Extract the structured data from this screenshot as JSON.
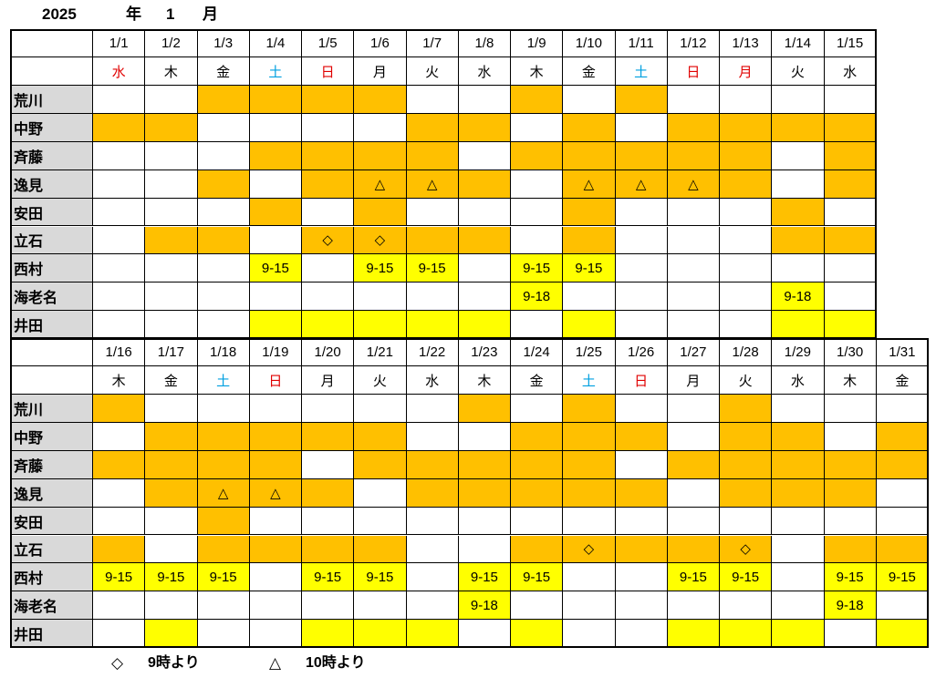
{
  "title": {
    "year": "2025",
    "year_unit": "年",
    "month": "1",
    "month_unit": "月"
  },
  "colors": {
    "o": "#ffc000",
    "y": "#ffff00",
    "w": "#ffffff"
  },
  "tables": [
    {
      "dates": [
        "1/1",
        "1/2",
        "1/3",
        "1/4",
        "1/5",
        "1/6",
        "1/7",
        "1/8",
        "1/9",
        "1/10",
        "1/11",
        "1/12",
        "1/13",
        "1/14",
        "1/15"
      ],
      "weekdays": [
        {
          "text": "水",
          "color": "#e00000"
        },
        {
          "text": "木",
          "color": "#000"
        },
        {
          "text": "金",
          "color": "#000"
        },
        {
          "text": "土",
          "color": "#00a0e0"
        },
        {
          "text": "日",
          "color": "#e00000"
        },
        {
          "text": "月",
          "color": "#000"
        },
        {
          "text": "火",
          "color": "#000"
        },
        {
          "text": "水",
          "color": "#000"
        },
        {
          "text": "木",
          "color": "#000"
        },
        {
          "text": "金",
          "color": "#000"
        },
        {
          "text": "土",
          "color": "#00a0e0"
        },
        {
          "text": "日",
          "color": "#e00000"
        },
        {
          "text": "月",
          "color": "#e00000"
        },
        {
          "text": "火",
          "color": "#000"
        },
        {
          "text": "水",
          "color": "#000"
        }
      ],
      "rows": [
        {
          "name": "荒川",
          "fill": [
            "w",
            "w",
            "o",
            "o",
            "o",
            "o",
            "w",
            "w",
            "o",
            "w",
            "o",
            "w",
            "w",
            "w",
            "w"
          ],
          "cells": [
            null,
            null,
            null,
            null,
            null,
            null,
            null,
            null,
            null,
            null,
            null,
            null,
            null,
            null,
            null
          ]
        },
        {
          "name": "中野",
          "fill": [
            "o",
            "o",
            "w",
            "w",
            "w",
            "w",
            "o",
            "o",
            "w",
            "o",
            "w",
            "o",
            "o",
            "o",
            "o"
          ],
          "cells": [
            null,
            null,
            null,
            null,
            null,
            null,
            null,
            null,
            null,
            null,
            null,
            null,
            null,
            null,
            null
          ]
        },
        {
          "name": "斉藤",
          "fill": [
            "w",
            "w",
            "w",
            "o",
            "o",
            "o",
            "o",
            "w",
            "o",
            "o",
            "o",
            "o",
            "o",
            "w",
            "o"
          ],
          "cells": [
            null,
            null,
            null,
            null,
            null,
            null,
            null,
            null,
            null,
            null,
            null,
            null,
            null,
            null,
            null
          ]
        },
        {
          "name": "逸見",
          "fill": [
            "w",
            "w",
            "o",
            "w",
            "o",
            "o",
            "o",
            "o",
            "w",
            "o",
            "o",
            "o",
            "o",
            "w",
            "o"
          ],
          "cells": [
            null,
            null,
            null,
            null,
            null,
            "△",
            "△",
            null,
            null,
            "△",
            "△",
            "△",
            null,
            null,
            null
          ]
        },
        {
          "name": "安田",
          "fill": [
            "w",
            "w",
            "w",
            "o",
            "w",
            "o",
            "w",
            "w",
            "w",
            "o",
            "w",
            "w",
            "w",
            "o",
            "w"
          ],
          "cells": [
            null,
            null,
            null,
            null,
            null,
            null,
            null,
            null,
            null,
            null,
            null,
            null,
            null,
            null,
            null
          ]
        },
        {
          "name": "立石",
          "fill": [
            "w",
            "o",
            "o",
            "w",
            "o",
            "o",
            "o",
            "o",
            "w",
            "o",
            "w",
            "w",
            "w",
            "o",
            "o"
          ],
          "cells": [
            null,
            null,
            null,
            null,
            "◇",
            "◇",
            null,
            null,
            null,
            null,
            null,
            null,
            null,
            null,
            null
          ]
        },
        {
          "name": "西村",
          "fill": [
            "w",
            "w",
            "w",
            "y",
            "w",
            "y",
            "y",
            "w",
            "y",
            "y",
            "w",
            "w",
            "w",
            "w",
            "w"
          ],
          "cells": [
            null,
            null,
            null,
            "9-15",
            null,
            "9-15",
            "9-15",
            null,
            "9-15",
            "9-15",
            null,
            null,
            null,
            null,
            null
          ]
        },
        {
          "name": "海老名",
          "fill": [
            "w",
            "w",
            "w",
            "w",
            "w",
            "w",
            "w",
            "w",
            "y",
            "w",
            "w",
            "w",
            "w",
            "y",
            "w"
          ],
          "cells": [
            null,
            null,
            null,
            null,
            null,
            null,
            null,
            null,
            "9-18",
            null,
            null,
            null,
            null,
            "9-18",
            null
          ]
        },
        {
          "name": "井田",
          "fill": [
            "w",
            "w",
            "w",
            "y",
            "y",
            "y",
            "y",
            "y",
            "w",
            "y",
            "w",
            "w",
            "w",
            "y",
            "y"
          ],
          "cells": [
            null,
            null,
            null,
            null,
            null,
            null,
            null,
            null,
            null,
            null,
            null,
            null,
            null,
            null,
            null
          ]
        }
      ]
    },
    {
      "dates": [
        "1/16",
        "1/17",
        "1/18",
        "1/19",
        "1/20",
        "1/21",
        "1/22",
        "1/23",
        "1/24",
        "1/25",
        "1/26",
        "1/27",
        "1/28",
        "1/29",
        "1/30",
        "1/31"
      ],
      "weekdays": [
        {
          "text": "木",
          "color": "#000"
        },
        {
          "text": "金",
          "color": "#000"
        },
        {
          "text": "土",
          "color": "#00a0e0"
        },
        {
          "text": "日",
          "color": "#e00000"
        },
        {
          "text": "月",
          "color": "#000"
        },
        {
          "text": "火",
          "color": "#000"
        },
        {
          "text": "水",
          "color": "#000"
        },
        {
          "text": "木",
          "color": "#000"
        },
        {
          "text": "金",
          "color": "#000"
        },
        {
          "text": "土",
          "color": "#00a0e0"
        },
        {
          "text": "日",
          "color": "#e00000"
        },
        {
          "text": "月",
          "color": "#000"
        },
        {
          "text": "火",
          "color": "#000"
        },
        {
          "text": "水",
          "color": "#000"
        },
        {
          "text": "木",
          "color": "#000"
        },
        {
          "text": "金",
          "color": "#000"
        }
      ],
      "rows": [
        {
          "name": "荒川",
          "fill": [
            "o",
            "w",
            "w",
            "w",
            "w",
            "w",
            "w",
            "o",
            "w",
            "o",
            "w",
            "w",
            "o",
            "w",
            "w",
            "w"
          ],
          "cells": [
            null,
            null,
            null,
            null,
            null,
            null,
            null,
            null,
            null,
            null,
            null,
            null,
            null,
            null,
            null,
            null
          ]
        },
        {
          "name": "中野",
          "fill": [
            "w",
            "o",
            "o",
            "o",
            "o",
            "o",
            "w",
            "w",
            "o",
            "o",
            "o",
            "w",
            "o",
            "o",
            "w",
            "o"
          ],
          "cells": [
            null,
            null,
            null,
            null,
            null,
            null,
            null,
            null,
            null,
            null,
            null,
            null,
            null,
            null,
            null,
            null
          ]
        },
        {
          "name": "斉藤",
          "fill": [
            "o",
            "o",
            "o",
            "o",
            "w",
            "o",
            "o",
            "o",
            "o",
            "o",
            "w",
            "o",
            "o",
            "o",
            "o",
            "o"
          ],
          "cells": [
            null,
            null,
            null,
            null,
            null,
            null,
            null,
            null,
            null,
            null,
            null,
            null,
            null,
            null,
            null,
            null
          ]
        },
        {
          "name": "逸見",
          "fill": [
            "w",
            "o",
            "o",
            "o",
            "o",
            "w",
            "o",
            "o",
            "o",
            "o",
            "o",
            "w",
            "o",
            "o",
            "o",
            "w"
          ],
          "cells": [
            null,
            null,
            "△",
            "△",
            null,
            null,
            null,
            null,
            null,
            null,
            null,
            null,
            null,
            null,
            null,
            null
          ]
        },
        {
          "name": "安田",
          "fill": [
            "w",
            "w",
            "o",
            "w",
            "w",
            "w",
            "w",
            "w",
            "w",
            "w",
            "w",
            "w",
            "w",
            "w",
            "w",
            "w"
          ],
          "cells": [
            null,
            null,
            null,
            null,
            null,
            null,
            null,
            null,
            null,
            null,
            null,
            null,
            null,
            null,
            null,
            null
          ]
        },
        {
          "name": "立石",
          "fill": [
            "o",
            "w",
            "o",
            "o",
            "o",
            "o",
            "w",
            "w",
            "o",
            "o",
            "o",
            "o",
            "o",
            "w",
            "o",
            "o"
          ],
          "cells": [
            null,
            null,
            null,
            null,
            null,
            null,
            null,
            null,
            null,
            "◇",
            null,
            null,
            "◇",
            null,
            null,
            null
          ]
        },
        {
          "name": "西村",
          "fill": [
            "y",
            "y",
            "y",
            "w",
            "y",
            "y",
            "w",
            "y",
            "y",
            "w",
            "w",
            "y",
            "y",
            "w",
            "y",
            "y"
          ],
          "cells": [
            "9-15",
            "9-15",
            "9-15",
            null,
            "9-15",
            "9-15",
            null,
            "9-15",
            "9-15",
            null,
            null,
            "9-15",
            "9-15",
            null,
            "9-15",
            "9-15"
          ]
        },
        {
          "name": "海老名",
          "fill": [
            "w",
            "w",
            "w",
            "w",
            "w",
            "w",
            "w",
            "y",
            "w",
            "w",
            "w",
            "w",
            "w",
            "w",
            "y",
            "w"
          ],
          "cells": [
            null,
            null,
            null,
            null,
            null,
            null,
            null,
            "9-18",
            null,
            null,
            null,
            null,
            null,
            null,
            "9-18",
            null
          ]
        },
        {
          "name": "井田",
          "fill": [
            "w",
            "y",
            "w",
            "w",
            "y",
            "y",
            "y",
            "w",
            "y",
            "w",
            "w",
            "y",
            "y",
            "y",
            "w",
            "y"
          ],
          "cells": [
            null,
            null,
            null,
            null,
            null,
            null,
            null,
            null,
            null,
            null,
            null,
            null,
            null,
            null,
            null,
            null
          ]
        }
      ]
    }
  ],
  "legend": [
    {
      "symbol": "◇",
      "text": "9時より"
    },
    {
      "symbol": "△",
      "text": "10時より"
    }
  ]
}
